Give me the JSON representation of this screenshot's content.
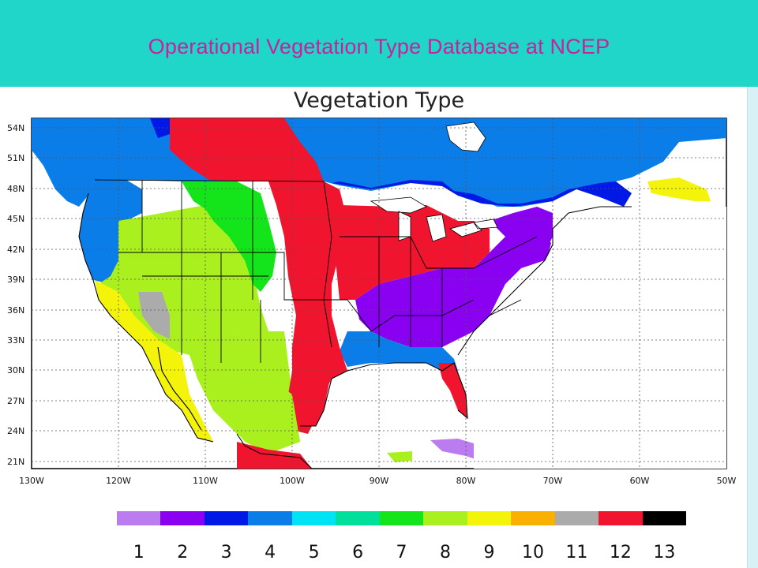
{
  "slide": {
    "title": "Operational Vegetation Type Database at NCEP"
  },
  "map": {
    "title": "Vegetation Type",
    "lat_labels": [
      "54N",
      "51N",
      "48N",
      "45N",
      "42N",
      "39N",
      "36N",
      "33N",
      "30N",
      "27N",
      "24N",
      "21N"
    ],
    "lon_labels": [
      "130W",
      "120W",
      "110W",
      "100W",
      "90W",
      "80W",
      "70W",
      "60W",
      "50W"
    ],
    "grid": true
  },
  "legend": {
    "items": [
      {
        "label": "1",
        "color": "#bb7cf0"
      },
      {
        "label": "2",
        "color": "#8a00f0"
      },
      {
        "label": "3",
        "color": "#0019e6"
      },
      {
        "label": "4",
        "color": "#0a7de8"
      },
      {
        "label": "5",
        "color": "#00e3f5"
      },
      {
        "label": "6",
        "color": "#00e09a"
      },
      {
        "label": "7",
        "color": "#14e41a"
      },
      {
        "label": "8",
        "color": "#aaf01e"
      },
      {
        "label": "9",
        "color": "#f4f40a"
      },
      {
        "label": "10",
        "color": "#f9b000"
      },
      {
        "label": "11",
        "color": "#ababab"
      },
      {
        "label": "12",
        "color": "#f0142e"
      },
      {
        "label": "13",
        "color": "#000000"
      }
    ]
  }
}
